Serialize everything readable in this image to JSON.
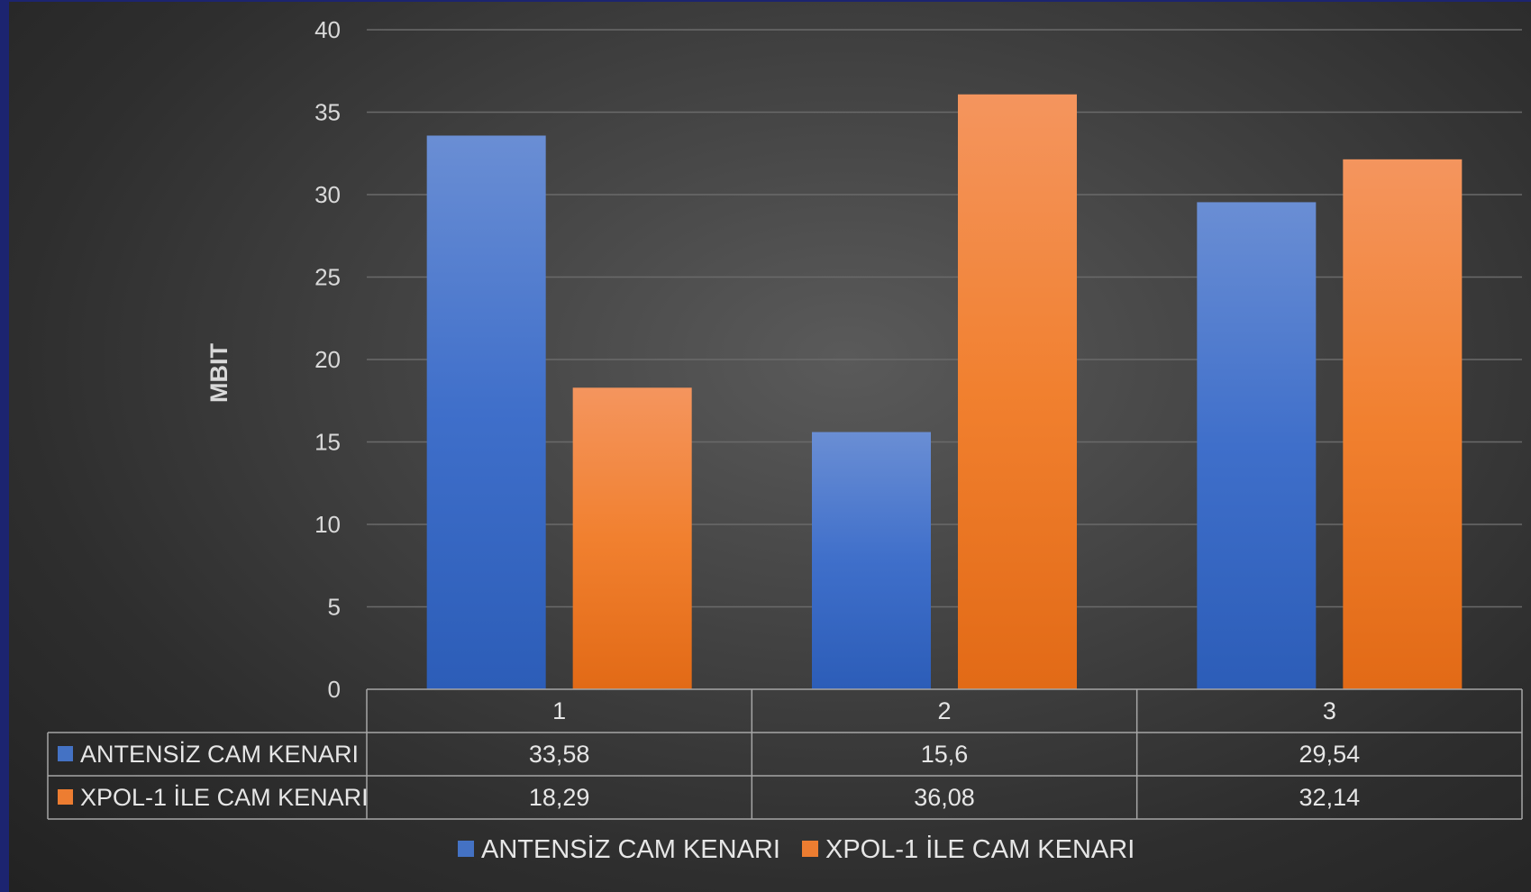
{
  "chart_data": {
    "type": "bar",
    "title": "",
    "xlabel": "",
    "ylabel": "MBIT",
    "ylim": [
      0,
      40
    ],
    "yticks": [
      0,
      5,
      10,
      15,
      20,
      25,
      30,
      35,
      40
    ],
    "categories": [
      "1",
      "2",
      "3"
    ],
    "grid": true,
    "legend_position": "bottom",
    "data_table": true,
    "series": [
      {
        "name": "ANTENSİZ CAM KENARI",
        "color": "#4472c4",
        "values": [
          33.58,
          15.6,
          29.54
        ],
        "labels": [
          "33,58",
          "15,6",
          "29,54"
        ]
      },
      {
        "name": "XPOL-1 İLE CAM KENARI",
        "color": "#ed7d31",
        "values": [
          18.29,
          36.08,
          32.14
        ],
        "labels": [
          "18,29",
          "36,08",
          "32,14"
        ]
      }
    ]
  }
}
